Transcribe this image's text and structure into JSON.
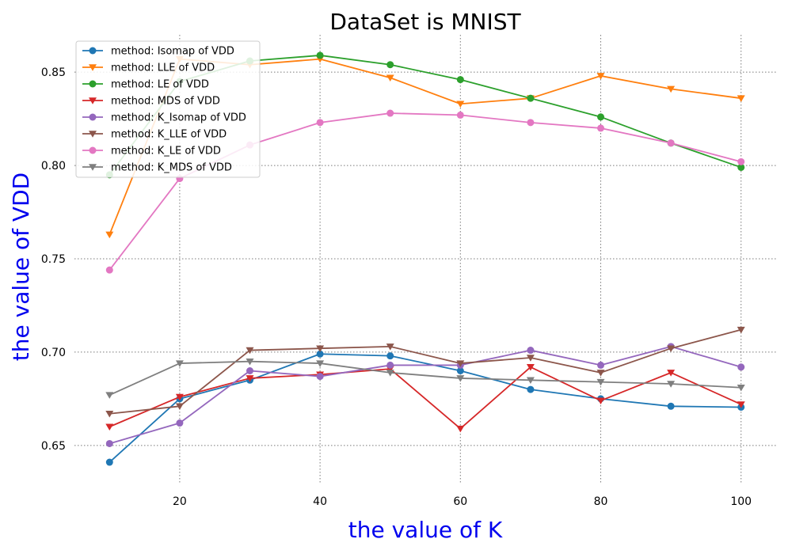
{
  "chart_data": {
    "type": "line",
    "title": "DataSet is MNIST",
    "xlabel": "the value of K",
    "ylabel": "the value of VDD",
    "x": [
      10,
      20,
      30,
      40,
      50,
      60,
      70,
      80,
      90,
      100
    ],
    "xlim": [
      5,
      105
    ],
    "ylim": [
      0.63,
      0.87
    ],
    "xticks": [
      20,
      40,
      60,
      80,
      100
    ],
    "yticks": [
      0.65,
      0.7,
      0.75,
      0.8,
      0.85
    ],
    "xtick_labels": [
      "20",
      "40",
      "60",
      "80",
      "100"
    ],
    "ytick_labels": [
      "0.65",
      "0.70",
      "0.75",
      "0.80",
      "0.85"
    ],
    "grid": true,
    "legend_position": "top-left",
    "series": [
      {
        "name": "method: Isomap of VDD",
        "color": "#1f77b4",
        "marker": "circle",
        "values": [
          0.641,
          0.675,
          0.685,
          0.699,
          0.698,
          0.69,
          0.68,
          0.675,
          0.671,
          0.6705
        ]
      },
      {
        "name": "method: LLE of VDD",
        "color": "#ff7f0e",
        "marker": "triangle-down",
        "values": [
          0.763,
          0.857,
          0.854,
          0.857,
          0.847,
          0.833,
          0.836,
          0.848,
          0.841,
          0.836
        ]
      },
      {
        "name": "method: LE of VDD",
        "color": "#2ca02c",
        "marker": "circle",
        "values": [
          0.795,
          0.845,
          0.856,
          0.859,
          0.854,
          0.846,
          0.836,
          0.826,
          0.812,
          0.799
        ]
      },
      {
        "name": "method: MDS of VDD",
        "color": "#d62728",
        "marker": "triangle-down",
        "values": [
          0.66,
          0.676,
          0.686,
          0.688,
          0.691,
          0.659,
          0.692,
          0.674,
          0.689,
          0.672
        ]
      },
      {
        "name": "method: K_Isomap of VDD",
        "color": "#9467bd",
        "marker": "circle",
        "values": [
          0.651,
          0.662,
          0.69,
          0.687,
          0.693,
          0.693,
          0.701,
          0.693,
          0.703,
          0.692
        ]
      },
      {
        "name": "method: K_LLE of VDD",
        "color": "#8c564b",
        "marker": "triangle-down",
        "values": [
          0.667,
          0.671,
          0.701,
          0.702,
          0.703,
          0.694,
          0.697,
          0.689,
          0.702,
          0.712
        ]
      },
      {
        "name": "method: K_LE of VDD",
        "color": "#e377c2",
        "marker": "circle",
        "values": [
          0.744,
          0.793,
          0.811,
          0.823,
          0.828,
          0.827,
          0.823,
          0.82,
          0.812,
          0.802
        ]
      },
      {
        "name": "method: K_MDS of VDD",
        "color": "#7f7f7f",
        "marker": "triangle-down",
        "values": [
          0.677,
          0.694,
          0.695,
          0.694,
          0.689,
          0.686,
          0.685,
          0.684,
          0.683,
          0.681
        ]
      }
    ]
  }
}
